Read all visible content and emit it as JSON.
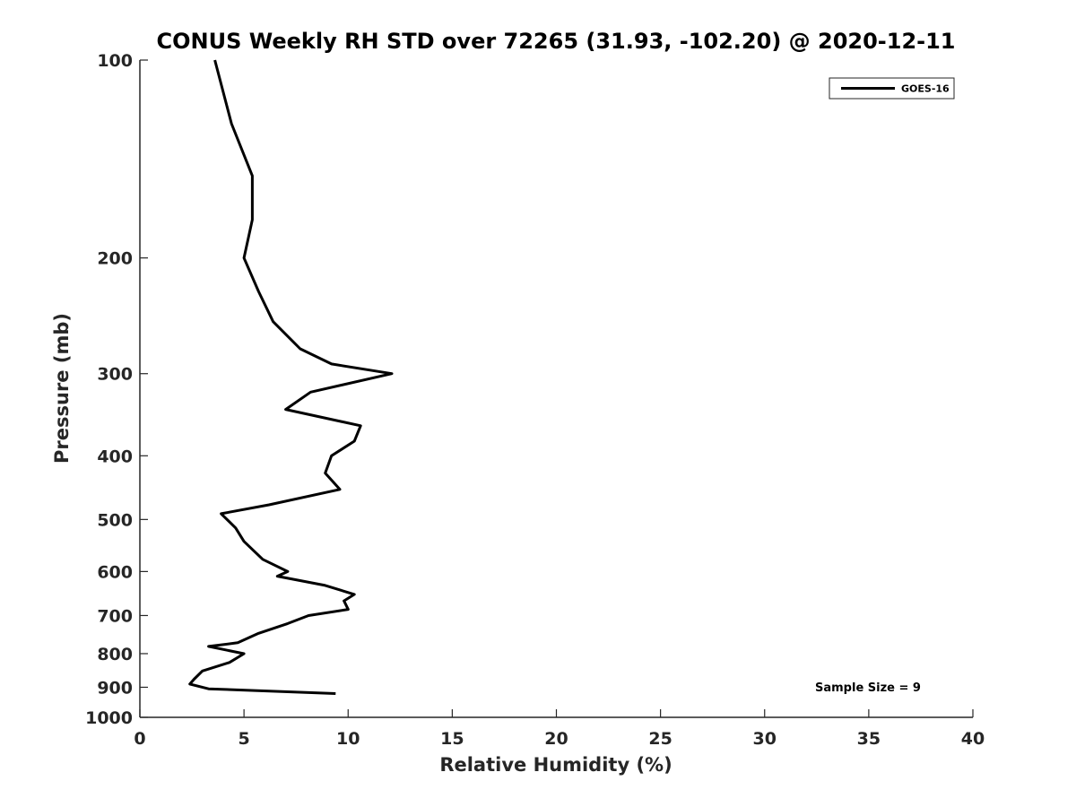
{
  "chart_data": {
    "type": "line",
    "title": "CONUS Weekly RH STD over 72265 (31.93, -102.20) @ 2020-12-11",
    "xlabel": "Relative Humidity (%)",
    "ylabel": "Pressure (mb)",
    "xlim": [
      0,
      40
    ],
    "ylim": [
      100,
      1000
    ],
    "yscale": "log",
    "y_reversed": true,
    "x_ticks": [
      0,
      5,
      10,
      15,
      20,
      25,
      30,
      35,
      40
    ],
    "x_tick_labels": [
      "0",
      "5",
      "10",
      "15",
      "20",
      "25",
      "30",
      "35",
      "40"
    ],
    "y_ticks": [
      100,
      200,
      300,
      400,
      500,
      600,
      700,
      800,
      900,
      1000
    ],
    "y_tick_labels": [
      "100",
      "200",
      "300",
      "400",
      "500",
      "600",
      "700",
      "800",
      "900",
      "1000"
    ],
    "grid": false,
    "legend": {
      "entries": [
        "GOES-16"
      ],
      "location": "top-right"
    },
    "annotation": "Sample Size = 9",
    "series": [
      {
        "name": "GOES-16",
        "color": "#000000",
        "points": [
          [
            3.6,
            100
          ],
          [
            4.4,
            125
          ],
          [
            5.4,
            150
          ],
          [
            5.4,
            175
          ],
          [
            5.0,
            200
          ],
          [
            5.7,
            225
          ],
          [
            6.4,
            250
          ],
          [
            7.7,
            275
          ],
          [
            9.2,
            290
          ],
          [
            12.1,
            300
          ],
          [
            8.2,
            320
          ],
          [
            7.0,
            340
          ],
          [
            10.6,
            360
          ],
          [
            10.3,
            380
          ],
          [
            9.2,
            400
          ],
          [
            8.9,
            425
          ],
          [
            9.6,
            450
          ],
          [
            6.2,
            475
          ],
          [
            3.9,
            490
          ],
          [
            4.6,
            515
          ],
          [
            5.0,
            540
          ],
          [
            5.9,
            575
          ],
          [
            7.1,
            600
          ],
          [
            6.6,
            610
          ],
          [
            8.9,
            630
          ],
          [
            10.3,
            650
          ],
          [
            9.8,
            665
          ],
          [
            10.0,
            685
          ],
          [
            8.1,
            700
          ],
          [
            7.1,
            720
          ],
          [
            5.7,
            745
          ],
          [
            4.7,
            770
          ],
          [
            3.3,
            780
          ],
          [
            5.0,
            800
          ],
          [
            4.3,
            825
          ],
          [
            3.0,
            850
          ],
          [
            2.6,
            875
          ],
          [
            2.4,
            890
          ],
          [
            3.3,
            905
          ],
          [
            9.4,
            920
          ]
        ]
      }
    ]
  }
}
